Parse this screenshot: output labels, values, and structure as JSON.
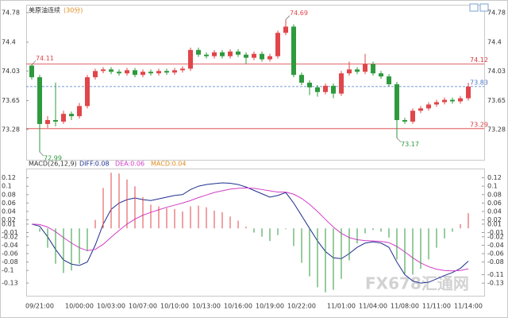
{
  "chart_data": [
    {
      "type": "candlestick",
      "title": "美原油连续",
      "subtitle": "(30分)",
      "up_color": "#e0464a",
      "down_color": "#2e9a3e",
      "ylim": [
        72.89,
        74.87
      ],
      "yticks": [
        74.78,
        74.4,
        74.03,
        73.65,
        73.28
      ],
      "levels": [
        {
          "value": 74.12,
          "color": "#d9393e",
          "dashed": false
        },
        {
          "value": 73.29,
          "color": "#d9393e",
          "dashed": false
        },
        {
          "value": 73.83,
          "color": "#4a78c8",
          "dashed": true
        }
      ],
      "annotations": [
        74.69,
        74.11,
        72.99,
        73.17
      ],
      "values": [
        [
          74.1,
          74.11,
          73.92,
          73.95
        ],
        [
          73.95,
          73.98,
          72.99,
          73.35
        ],
        [
          73.35,
          73.45,
          73.3,
          73.4
        ],
        [
          73.4,
          73.88,
          73.32,
          73.38
        ],
        [
          73.38,
          73.52,
          73.35,
          73.48
        ],
        [
          73.48,
          73.51,
          73.4,
          73.45
        ],
        [
          73.45,
          73.62,
          73.42,
          73.58
        ],
        [
          73.58,
          73.98,
          73.55,
          73.95
        ],
        [
          73.95,
          74.06,
          73.92,
          74.03
        ],
        [
          74.03,
          74.08,
          74.0,
          74.05
        ],
        [
          74.05,
          74.08,
          73.99,
          74.02
        ],
        [
          74.02,
          74.05,
          73.97,
          74.0
        ],
        [
          74.0,
          74.07,
          73.97,
          74.04
        ],
        [
          74.04,
          74.07,
          73.95,
          73.98
        ],
        [
          73.98,
          74.05,
          73.95,
          74.02
        ],
        [
          74.02,
          74.05,
          73.97,
          74.0
        ],
        [
          74.0,
          74.06,
          73.97,
          74.03
        ],
        [
          74.03,
          74.06,
          73.98,
          74.01
        ],
        [
          74.01,
          74.07,
          73.98,
          74.04
        ],
        [
          74.04,
          74.09,
          74.01,
          74.06
        ],
        [
          74.06,
          74.33,
          74.03,
          74.3
        ],
        [
          74.3,
          74.33,
          74.21,
          74.24
        ],
        [
          74.24,
          74.27,
          74.19,
          74.22
        ],
        [
          74.22,
          74.3,
          74.19,
          74.27
        ],
        [
          74.27,
          74.3,
          74.19,
          74.22
        ],
        [
          74.22,
          74.31,
          74.19,
          74.28
        ],
        [
          74.28,
          74.31,
          74.21,
          74.24
        ],
        [
          74.24,
          74.27,
          74.12,
          74.2
        ],
        [
          74.2,
          74.28,
          74.17,
          74.25
        ],
        [
          74.25,
          74.28,
          74.15,
          74.18
        ],
        [
          74.18,
          74.25,
          74.15,
          74.22
        ],
        [
          74.22,
          74.55,
          74.19,
          74.52
        ],
        [
          74.52,
          74.69,
          74.49,
          74.6
        ],
        [
          74.6,
          74.63,
          73.95,
          73.98
        ],
        [
          73.98,
          74.01,
          73.85,
          73.88
        ],
        [
          73.88,
          73.91,
          73.72,
          73.82
        ],
        [
          73.82,
          73.85,
          73.7,
          73.76
        ],
        [
          73.76,
          73.87,
          73.73,
          73.84
        ],
        [
          73.84,
          73.87,
          73.68,
          73.74
        ],
        [
          73.74,
          74.03,
          73.71,
          74.0
        ],
        [
          74.0,
          74.15,
          73.97,
          74.05
        ],
        [
          74.05,
          74.08,
          73.99,
          74.02
        ],
        [
          74.02,
          74.25,
          73.99,
          74.12
        ],
        [
          74.12,
          74.15,
          73.97,
          74.0
        ],
        [
          74.0,
          74.03,
          73.93,
          73.96
        ],
        [
          73.96,
          73.99,
          73.83,
          73.86
        ],
        [
          73.86,
          73.89,
          73.17,
          73.4
        ],
        [
          73.4,
          73.43,
          73.35,
          73.38
        ],
        [
          73.38,
          73.55,
          73.35,
          73.52
        ],
        [
          73.52,
          73.58,
          73.49,
          73.55
        ],
        [
          73.55,
          73.63,
          73.52,
          73.6
        ],
        [
          73.6,
          73.66,
          73.57,
          73.63
        ],
        [
          73.63,
          73.69,
          73.6,
          73.66
        ],
        [
          73.66,
          73.69,
          73.61,
          73.64
        ],
        [
          73.64,
          73.71,
          73.61,
          73.68
        ],
        [
          73.68,
          73.88,
          73.65,
          73.83
        ]
      ]
    },
    {
      "type": "macd",
      "title": "MACD(26,12,9)",
      "watermark": "FX678汇通网",
      "categories": [
        null,
        "09/21:00",
        null,
        null,
        null,
        null,
        "10/00:00",
        null,
        null,
        null,
        "10/03:00",
        null,
        null,
        null,
        "10/07:00",
        null,
        null,
        null,
        "10/10:00",
        null,
        null,
        null,
        "10/13:00",
        null,
        null,
        null,
        "10/16:00",
        null,
        null,
        null,
        "10/19:00",
        null,
        null,
        null,
        "10/22:00",
        null,
        null,
        null,
        null,
        "11/01:00",
        null,
        null,
        null,
        "11/04:00",
        null,
        null,
        null,
        "11/08:00",
        null,
        null,
        null,
        "11/11:00",
        null,
        null,
        null,
        "11/14:00"
      ],
      "ylim": [
        -0.16,
        0.14
      ],
      "yticks": [
        0.12,
        0.1,
        0.08,
        0.06,
        0.04,
        0.02,
        0.01,
        -0.01,
        -0.02,
        -0.04,
        -0.06,
        -0.08,
        -0.1,
        -0.13
      ],
      "y2ticks": [
        0.12,
        0.1,
        0.08,
        0.06,
        0.04,
        0.02,
        0.01,
        -0.01,
        -0.02,
        -0.04,
        -0.06,
        -0.08,
        -0.11,
        -0.13
      ],
      "series": [
        {
          "name": "DIFF:0.08",
          "color": "#1f2f8f",
          "kind": "line",
          "values": [
            0.01,
            0.005,
            -0.02,
            -0.05,
            -0.075,
            -0.085,
            -0.088,
            -0.08,
            -0.04,
            0.01,
            0.045,
            0.06,
            0.068,
            0.072,
            0.068,
            0.066,
            0.07,
            0.074,
            0.078,
            0.08,
            0.092,
            0.1,
            0.104,
            0.106,
            0.108,
            0.107,
            0.104,
            0.098,
            0.09,
            0.082,
            0.074,
            0.078,
            0.085,
            0.06,
            0.03,
            0.0,
            -0.03,
            -0.055,
            -0.07,
            -0.072,
            -0.06,
            -0.045,
            -0.035,
            -0.032,
            -0.035,
            -0.045,
            -0.08,
            -0.11,
            -0.125,
            -0.13,
            -0.128,
            -0.12,
            -0.112,
            -0.105,
            -0.095,
            -0.078
          ]
        },
        {
          "name": "DEA:0.06",
          "color": "#d23cc8",
          "kind": "line",
          "values": [
            0.01,
            0.009,
            0.003,
            -0.008,
            -0.022,
            -0.035,
            -0.046,
            -0.053,
            -0.05,
            -0.038,
            -0.021,
            -0.005,
            0.01,
            0.022,
            0.031,
            0.038,
            0.044,
            0.05,
            0.055,
            0.06,
            0.066,
            0.073,
            0.079,
            0.085,
            0.089,
            0.093,
            0.095,
            0.096,
            0.095,
            0.092,
            0.089,
            0.086,
            0.086,
            0.081,
            0.071,
            0.057,
            0.04,
            0.021,
            0.003,
            -0.012,
            -0.022,
            -0.027,
            -0.029,
            -0.03,
            -0.031,
            -0.034,
            -0.043,
            -0.056,
            -0.07,
            -0.082,
            -0.091,
            -0.097,
            -0.1,
            -0.101,
            -0.1,
            -0.096
          ]
        },
        {
          "name": "MACD:0.04",
          "color": "#e08a1e",
          "kind": "histogram",
          "up_color": "#e0464a",
          "down_color": "#2e9a3e",
          "values": [
            0.0,
            -0.008,
            -0.046,
            -0.084,
            -0.106,
            -0.1,
            -0.084,
            -0.054,
            0.02,
            0.096,
            0.132,
            0.13,
            0.116,
            0.1,
            0.074,
            0.056,
            0.052,
            0.048,
            0.046,
            0.04,
            0.052,
            0.054,
            0.05,
            0.042,
            0.038,
            0.028,
            0.018,
            0.004,
            -0.01,
            -0.02,
            -0.03,
            -0.016,
            -0.002,
            -0.042,
            -0.082,
            -0.114,
            -0.14,
            -0.152,
            -0.146,
            -0.12,
            -0.076,
            -0.036,
            -0.012,
            -0.004,
            -0.008,
            -0.022,
            -0.074,
            -0.108,
            -0.11,
            -0.096,
            -0.074,
            -0.046,
            -0.024,
            -0.008,
            0.01,
            0.036
          ]
        }
      ]
    }
  ]
}
